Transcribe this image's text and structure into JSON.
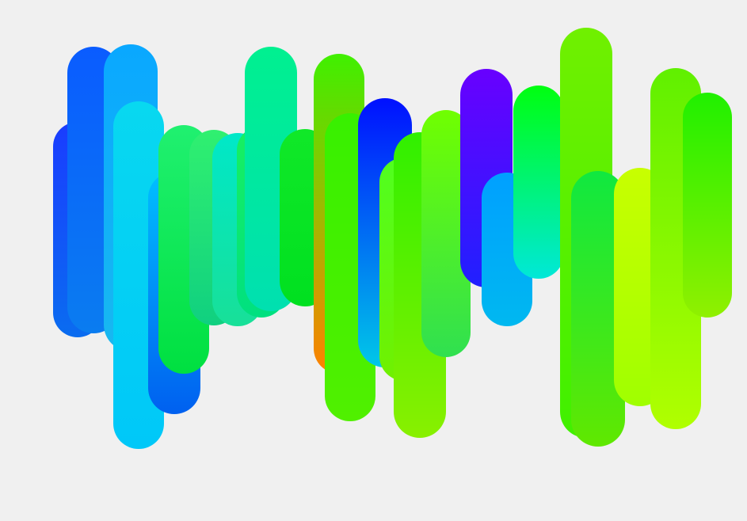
{
  "canvas": {
    "background": "#f0f0f0"
  },
  "artwork": {
    "description_visible_text": "",
    "strokes": [
      {
        "from": "#1a3cff",
        "to": "#0a6cf0"
      },
      {
        "from": "#0a5cff",
        "to": "#0a7cf0"
      },
      {
        "from": "#0aa8ff",
        "to": "#18b8f0"
      },
      {
        "from": "#08d8f0",
        "to": "#00c8f8"
      },
      {
        "from": "#00c0ff",
        "to": "#0060f0"
      },
      {
        "from": "#20f070",
        "to": "#00e040"
      },
      {
        "from": "#30f070",
        "to": "#10d080"
      },
      {
        "from": "#00e8c8",
        "to": "#18e098"
      },
      {
        "from": "#18f060",
        "to": "#00e080"
      },
      {
        "from": "#00f090",
        "to": "#00e0b0"
      },
      {
        "from": "#10e828",
        "to": "#00e020"
      },
      {
        "from": "#40f000",
        "to": "#ff8000"
      },
      {
        "from": "#38f000",
        "to": "#50f000"
      },
      {
        "from": "#0010ff",
        "to": "#00c8e8"
      },
      {
        "from": "#50ff20",
        "to": "#70f000"
      },
      {
        "from": "#30f000",
        "to": "#88f000"
      },
      {
        "from": "#70ff00",
        "to": "#30e050"
      },
      {
        "from": "#6800ff",
        "to": "#2020ff"
      },
      {
        "from": "#00a0ff",
        "to": "#00b8f0"
      },
      {
        "from": "#00ff10",
        "to": "#00e8d8"
      },
      {
        "from": "#70f000",
        "to": "#40f000"
      },
      {
        "from": "#10e840",
        "to": "#60e800"
      },
      {
        "from": "#c8ff00",
        "to": "#a0ff00"
      },
      {
        "from": "#60f000",
        "to": "#b0ff00"
      },
      {
        "from": "#20f000",
        "to": "#90f000"
      }
    ]
  }
}
